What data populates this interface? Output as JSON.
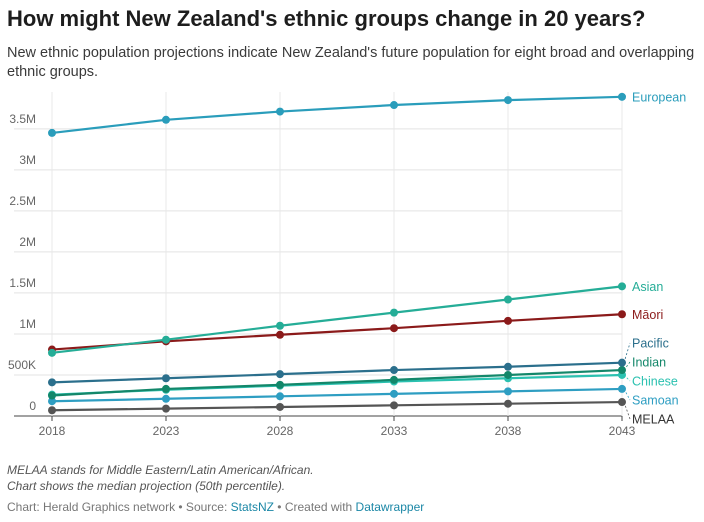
{
  "header": {
    "title": "How might New Zealand's ethnic groups change in 20 years?",
    "subtitle": "New ethnic population projections indicate New Zealand's future population for eight broad and overlapping ethnic groups."
  },
  "footer": {
    "note1": "MELAA stands for Middle Eastern/Latin American/African.",
    "note2": "Chart shows the median projection (50th percentile).",
    "source_prefix": "Chart: Herald Graphics network • Source: ",
    "source_link": "StatsNZ",
    "created_prefix": " • Created with ",
    "created_link": "Datawrapper"
  },
  "chart_data": {
    "type": "line",
    "x": [
      2018,
      2023,
      2028,
      2033,
      2038,
      2043
    ],
    "xticks": [
      "2018",
      "2023",
      "2028",
      "2033",
      "2038",
      "2043"
    ],
    "ylim": [
      0,
      3900000
    ],
    "yticks": [
      0,
      500000,
      1000000,
      1500000,
      2000000,
      2500000,
      3000000,
      3500000
    ],
    "yticklabels": [
      "0",
      "500K",
      "1M",
      "1.5M",
      "2M",
      "2.5M",
      "3M",
      "3.5M"
    ],
    "grid": true,
    "series": [
      {
        "name": "European",
        "color": "#2a9dbb",
        "values": [
          3450000,
          3610000,
          3710000,
          3790000,
          3850000,
          3890000
        ]
      },
      {
        "name": "Asian",
        "color": "#25ad97",
        "values": [
          770000,
          930000,
          1100000,
          1260000,
          1420000,
          1580000
        ]
      },
      {
        "name": "Māori",
        "color": "#8b1a1a",
        "values": [
          810000,
          910000,
          990000,
          1070000,
          1160000,
          1240000
        ]
      },
      {
        "name": "Pacific",
        "color": "#2b6f8c",
        "values": [
          410000,
          460000,
          510000,
          560000,
          600000,
          650000
        ]
      },
      {
        "name": "Indian",
        "color": "#13876a",
        "values": [
          250000,
          330000,
          380000,
          440000,
          500000,
          560000
        ]
      },
      {
        "name": "Chinese",
        "color": "#2bc1b0",
        "values": [
          260000,
          320000,
          370000,
          420000,
          460000,
          500000
        ]
      },
      {
        "name": "Samoan",
        "color": "#2e9ec2",
        "values": [
          180000,
          210000,
          240000,
          270000,
          300000,
          330000
        ]
      },
      {
        "name": "MELAA",
        "color": "#555555",
        "values": [
          70000,
          90000,
          110000,
          130000,
          150000,
          170000
        ]
      }
    ]
  }
}
